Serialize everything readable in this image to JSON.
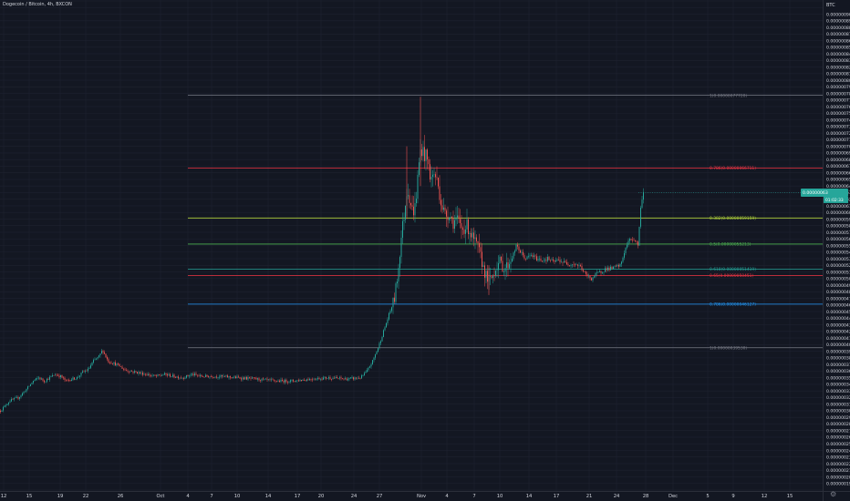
{
  "header": {
    "title": "Dogecoin / Bitcoin, 4h, BXCON"
  },
  "price_scale": {
    "unit": "BTC",
    "badge_price": "0.00000063",
    "badge_time": "01:02:33"
  },
  "colors": {
    "background": "#131722",
    "grid": "#1e2230",
    "up": "#26a69a",
    "down": "#ef5350",
    "text": "#d1d4dc",
    "muted": "#787b86"
  },
  "chart_data": {
    "type": "candlestick",
    "ylim": [
      1.8e-07,
      9.2e-07
    ],
    "y_ticks": [
      "0.00000092000",
      "0.00000091000",
      "0.00000090000",
      "0.00000089000",
      "0.00000088000",
      "0.00000087000",
      "0.00000086000",
      "0.00000085000",
      "0.00000084000",
      "0.00000083000",
      "0.00000082000",
      "0.00000081000",
      "0.00000080000",
      "0.00000079000",
      "0.00000078000",
      "0.00000077000",
      "0.00000076000",
      "0.00000075000",
      "0.00000074000",
      "0.00000073000",
      "0.00000072000",
      "0.00000071000",
      "0.00000070000",
      "0.00000069000",
      "0.00000068000",
      "0.00000067000",
      "0.00000066000",
      "0.00000065000",
      "0.00000064000",
      "0.00000063000",
      "0.00000062000",
      "0.00000061000",
      "0.00000060000",
      "0.00000059000",
      "0.00000058000",
      "0.00000057000",
      "0.00000056000",
      "0.00000055000",
      "0.00000054000",
      "0.00000053000",
      "0.00000052000",
      "0.00000051000",
      "0.00000050000",
      "0.00000049000",
      "0.00000048000",
      "0.00000047000",
      "0.00000046000",
      "0.00000045000",
      "0.00000044000",
      "0.00000043000",
      "0.00000042000",
      "0.00000041000",
      "0.00000040000",
      "0.00000039000",
      "0.00000038000",
      "0.00000037000",
      "0.00000036000",
      "0.00000035000",
      "0.00000034000",
      "0.00000033000",
      "0.00000032000",
      "0.00000031000",
      "0.00000030000",
      "0.00000029000",
      "0.00000028000",
      "0.00000027000",
      "0.00000026000",
      "0.00000025000",
      "0.00000024000",
      "0.00000023000",
      "0.00000022000",
      "0.00000021000",
      "0.00000020000",
      "0.00000019000",
      "0.00000018000"
    ],
    "x_ticks": [
      "12",
      "15",
      "19",
      "22",
      "26",
      "Oct",
      "4",
      "7",
      "10",
      "14",
      "17",
      "20",
      "24",
      "27",
      "Nov",
      "4",
      "7",
      "10",
      "14",
      "17",
      "21",
      "24",
      "28",
      "Dec",
      "5",
      "9",
      "12",
      "15"
    ],
    "fib_levels": [
      {
        "label": "1(0.00000077720)",
        "price": 7.772e-07,
        "color": "#787b86"
      },
      {
        "label": "0.786(0.00000066711)",
        "price": 6.6711e-07,
        "color": "#f23645"
      },
      {
        "label": "0.382(0.00000059159)",
        "price": 5.9159e-07,
        "color": "#b2d43b"
      },
      {
        "label": "0.5(0.00000055213)",
        "price": 5.5213e-07,
        "color": "#4caf50"
      },
      {
        "label": "0.618(0.00000051419)",
        "price": 5.1419e-07,
        "color": "#26a69a"
      },
      {
        "label": "0.65(0.00000050451)",
        "price": 5.0451e-07,
        "color": "#f23645"
      },
      {
        "label": "0.786(0.00000046127)",
        "price": 4.6127e-07,
        "color": "#2196f3"
      },
      {
        "label": "1(0.00000039530)",
        "price": 3.953e-07,
        "color": "#787b86"
      }
    ],
    "price_path": [
      [
        0,
        3e-07
      ],
      [
        10,
        3.15e-07
      ],
      [
        20,
        3.2e-07
      ],
      [
        30,
        3.35e-07
      ],
      [
        36,
        3.45e-07
      ],
      [
        42,
        3.5e-07
      ],
      [
        48,
        3.45e-07
      ],
      [
        54,
        3.5e-07
      ],
      [
        60,
        3.55e-07
      ],
      [
        66,
        3.52e-07
      ],
      [
        72,
        3.45e-07
      ],
      [
        78,
        3.48e-07
      ],
      [
        84,
        3.5e-07
      ],
      [
        90,
        3.58e-07
      ],
      [
        96,
        3.62e-07
      ],
      [
        102,
        3.75e-07
      ],
      [
        108,
        3.82e-07
      ],
      [
        112,
        3.92e-07
      ],
      [
        118,
        3.75e-07
      ],
      [
        124,
        3.72e-07
      ],
      [
        130,
        3.68e-07
      ],
      [
        136,
        3.62e-07
      ],
      [
        142,
        3.6e-07
      ],
      [
        150,
        3.58e-07
      ],
      [
        160,
        3.55e-07
      ],
      [
        170,
        3.52e-07
      ],
      [
        180,
        3.55e-07
      ],
      [
        190,
        3.52e-07
      ],
      [
        200,
        3.5e-07
      ],
      [
        210,
        3.55e-07
      ],
      [
        220,
        3.52e-07
      ],
      [
        240,
        3.52e-07
      ],
      [
        260,
        3.5e-07
      ],
      [
        280,
        3.48e-07
      ],
      [
        300,
        3.45e-07
      ],
      [
        320,
        3.45e-07
      ],
      [
        340,
        3.48e-07
      ],
      [
        360,
        3.5e-07
      ],
      [
        380,
        3.48e-07
      ],
      [
        395,
        3.5e-07
      ],
      [
        402,
        3.6e-07
      ],
      [
        408,
        3.75e-07
      ],
      [
        414,
        3.95e-07
      ],
      [
        420,
        4.2e-07
      ],
      [
        426,
        4.45e-07
      ],
      [
        432,
        4.7e-07
      ],
      [
        436,
        5.1e-07
      ],
      [
        440,
        5.7e-07
      ],
      [
        443,
        6e-07
      ],
      [
        446,
        6.4e-07
      ],
      [
        449,
        6.2e-07
      ],
      [
        452,
        6e-07
      ],
      [
        455,
        6.1e-07
      ],
      [
        458,
        6.6e-07
      ],
      [
        461,
        7e-07
      ],
      [
        464,
        6.9e-07
      ],
      [
        468,
        6.8e-07
      ],
      [
        472,
        6.5e-07
      ],
      [
        476,
        6.6e-07
      ],
      [
        480,
        6.4e-07
      ],
      [
        484,
        6.1e-07
      ],
      [
        488,
        5.95e-07
      ],
      [
        492,
        6e-07
      ],
      [
        496,
        5.85e-07
      ],
      [
        500,
        5.9e-07
      ],
      [
        506,
        5.75e-07
      ],
      [
        512,
        5.8e-07
      ],
      [
        518,
        5.6e-07
      ],
      [
        524,
        5.45e-07
      ],
      [
        528,
        5.25e-07
      ],
      [
        532,
        5.05e-07
      ],
      [
        536,
        4.95e-07
      ],
      [
        540,
        5.05e-07
      ],
      [
        544,
        5.2e-07
      ],
      [
        548,
        5.25e-07
      ],
      [
        552,
        5.15e-07
      ],
      [
        556,
        5.2e-07
      ],
      [
        562,
        5.35e-07
      ],
      [
        566,
        5.5e-07
      ],
      [
        570,
        5.4e-07
      ],
      [
        576,
        5.3e-07
      ],
      [
        582,
        5.35e-07
      ],
      [
        588,
        5.3e-07
      ],
      [
        594,
        5.28e-07
      ],
      [
        600,
        5.3e-07
      ],
      [
        606,
        5.25e-07
      ],
      [
        612,
        5.28e-07
      ],
      [
        618,
        5.24e-07
      ],
      [
        624,
        5.22e-07
      ],
      [
        630,
        5.22e-07
      ],
      [
        636,
        5.18e-07
      ],
      [
        642,
        5.05e-07
      ],
      [
        648,
        5e-07
      ],
      [
        652,
        5.05e-07
      ],
      [
        658,
        5.1e-07
      ],
      [
        664,
        5.15e-07
      ],
      [
        670,
        5.15e-07
      ],
      [
        676,
        5.18e-07
      ],
      [
        680,
        5.2e-07
      ],
      [
        684,
        5.4e-07
      ],
      [
        688,
        5.55e-07
      ],
      [
        692,
        5.6e-07
      ],
      [
        696,
        5.58e-07
      ],
      [
        699,
        5.5e-07
      ],
      [
        701,
        5.9e-07
      ],
      [
        703,
        6.2e-07
      ],
      [
        705,
        6.3e-07
      ]
    ]
  }
}
